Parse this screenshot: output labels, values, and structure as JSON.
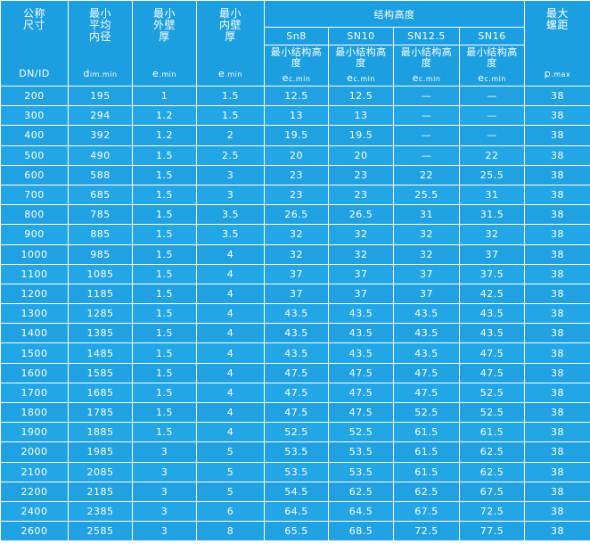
{
  "header": {
    "dn": {
      "title": "公称尺寸",
      "symbol": "DN/ID"
    },
    "inner_diameter": {
      "title": "最小平均内径",
      "symbol": "d",
      "sub": "im.min"
    },
    "outer_wall": {
      "title": "最小外壁厚",
      "symbol": "e",
      "sub": ".min"
    },
    "inner_wall": {
      "title": "最小内壁厚",
      "symbol": "e",
      "sub": ".min"
    },
    "structure": {
      "title": "结构高度",
      "classes": [
        "Sn8",
        "SN10",
        "SN12.5",
        "SN16"
      ],
      "subtitle": "最小结构高度",
      "symbol": "e",
      "sub": "c.min"
    },
    "pitch": {
      "title": "最大螺距",
      "symbol": "p",
      "sub": ".max"
    }
  },
  "table": {
    "rows": [
      [
        200,
        195,
        1,
        1.5,
        12.5,
        12.5,
        "—",
        "—",
        38
      ],
      [
        300,
        294,
        1.2,
        1.5,
        13,
        13,
        "—",
        "—",
        38
      ],
      [
        400,
        392,
        1.2,
        2,
        19.5,
        19.5,
        "—",
        "—",
        38
      ],
      [
        500,
        490,
        1.5,
        2.5,
        20,
        20,
        "—",
        22,
        38
      ],
      [
        600,
        588,
        1.5,
        3,
        23,
        23,
        22,
        25.5,
        38
      ],
      [
        700,
        685,
        1.5,
        3,
        23,
        23,
        25.5,
        31,
        38
      ],
      [
        800,
        785,
        1.5,
        3.5,
        26.5,
        26.5,
        31,
        31.5,
        38
      ],
      [
        900,
        885,
        1.5,
        3.5,
        32,
        32,
        32,
        32,
        38
      ],
      [
        1000,
        985,
        1.5,
        4,
        32,
        32,
        32,
        37,
        38
      ],
      [
        1100,
        1085,
        1.5,
        4,
        37,
        37,
        37,
        37.5,
        38
      ],
      [
        1200,
        1185,
        1.5,
        4,
        37,
        37,
        37,
        42.5,
        38
      ],
      [
        1300,
        1285,
        1.5,
        4,
        43.5,
        43.5,
        43.5,
        43.5,
        38
      ],
      [
        1400,
        1385,
        1.5,
        4,
        43.5,
        43.5,
        43.5,
        43.5,
        38
      ],
      [
        1500,
        1485,
        1.5,
        4,
        43.5,
        43.5,
        43.5,
        47.5,
        38
      ],
      [
        1600,
        1585,
        1.5,
        4,
        47.5,
        47.5,
        47.5,
        47.5,
        38
      ],
      [
        1700,
        1685,
        1.5,
        4,
        47.5,
        47.5,
        47.5,
        52.5,
        38
      ],
      [
        1800,
        1785,
        1.5,
        4,
        47.5,
        47.5,
        52.5,
        52.5,
        38
      ],
      [
        1900,
        1885,
        1.5,
        4,
        52.5,
        52.5,
        61.5,
        61.5,
        38
      ],
      [
        2000,
        1985,
        3,
        5,
        53.5,
        53.5,
        61.5,
        62.5,
        38
      ],
      [
        2100,
        2085,
        3,
        5,
        53.5,
        53.5,
        61.5,
        62.5,
        38
      ],
      [
        2200,
        2185,
        3,
        5,
        54.5,
        62.5,
        62.5,
        67.5,
        38
      ],
      [
        2400,
        2385,
        3,
        6,
        64.5,
        64.5,
        67.5,
        72.5,
        38
      ],
      [
        2600,
        2585,
        3,
        8,
        65.5,
        68.5,
        72.5,
        77.5,
        38
      ]
    ]
  }
}
